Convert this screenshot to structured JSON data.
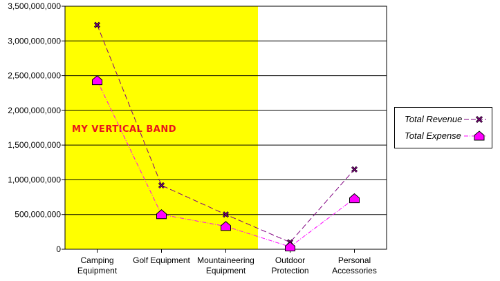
{
  "chart_data": {
    "type": "line",
    "title": "",
    "xlabel": "",
    "ylabel": "",
    "categories": [
      [
        "Camping",
        "Equipment"
      ],
      [
        "Golf Equipment"
      ],
      [
        "Mountaineering",
        "Equipment"
      ],
      [
        "Outdoor",
        "Protection"
      ],
      [
        "Personal",
        "Accessories"
      ]
    ],
    "series": [
      {
        "name": "Total Revenue",
        "values": [
          3230000000,
          920000000,
          500000000,
          100000000,
          1150000000
        ],
        "color": "#800080",
        "marker": "x-cross",
        "dash": "dashed"
      },
      {
        "name": "Total Expense",
        "values": [
          2430000000,
          500000000,
          330000000,
          35000000,
          730000000
        ],
        "color": "#ff00ff",
        "marker": "house",
        "dash": "dash-dot"
      }
    ],
    "ylim": [
      0,
      3500000000
    ],
    "yticks": [
      "0",
      "500,000,000",
      "1,000,000,000",
      "1,500,000,000",
      "2,000,000,000",
      "2,500,000,000",
      "3,000,000,000",
      "3,500,000,000"
    ],
    "grid": true,
    "legend_position": "right",
    "band": {
      "label": "MY VERTICAL BAND",
      "from_category": 0,
      "to_category": 2,
      "color": "#ffff00"
    }
  }
}
